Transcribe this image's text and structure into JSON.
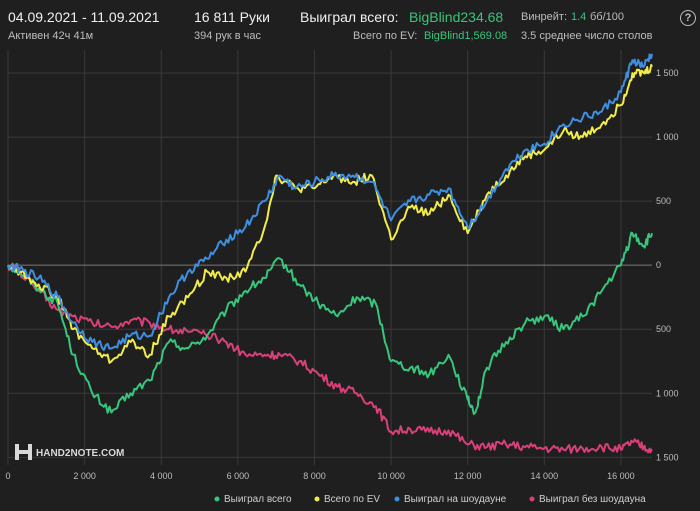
{
  "header": {
    "date_range": "04.09.2021 - 11.09.2021",
    "active": "Активен 42ч 41м",
    "hands": "16 811 Руки",
    "hands_per_hour": "394 рук в час",
    "won_total_label": "Выиграл всего:",
    "won_total_value": "BigBlind234.68",
    "ev_total_label": "Всего по EV:",
    "ev_total_value": "BigBlind1,569.08",
    "winrate_label": "Винрейт:",
    "winrate_value": "1.4",
    "winrate_unit": "бб/100",
    "avg_tables": "3.5 среднее число столов"
  },
  "brand": {
    "name": "HAND2NOTE.COM"
  },
  "colors": {
    "won_total": "#37c67b",
    "ev": "#f2ec4a",
    "showdown": "#3f8fe0",
    "non_showdown": "#d9407a",
    "grid": "#3a3a3a",
    "zero_line": "#7a7a7a",
    "accent_green": "#37c67b"
  },
  "chart_data": {
    "type": "line",
    "x_ticks": [
      0,
      2000,
      4000,
      6000,
      8000,
      10000,
      12000,
      14000,
      16000
    ],
    "x_tick_labels": [
      "0",
      "2 000",
      "4 000",
      "6 000",
      "8 000",
      "10 000",
      "12 000",
      "14 000",
      "16 000"
    ],
    "y_ticks": [
      1500,
      1000,
      500,
      0,
      -500,
      -1000,
      -1500
    ],
    "y_tick_labels": [
      "1 500",
      "1 000",
      "500",
      "0",
      "500",
      "1 000",
      "1 500"
    ],
    "xlim": [
      0,
      16811
    ],
    "ylim": [
      -1560,
      1680
    ],
    "grid": true,
    "legend_position": "bottom",
    "series": [
      {
        "name": "Выиграл всего",
        "color": "#37c67b",
        "points": [
          [
            0,
            0
          ],
          [
            300,
            -50
          ],
          [
            800,
            -180
          ],
          [
            1300,
            -300
          ],
          [
            1700,
            -700
          ],
          [
            2200,
            -1000
          ],
          [
            2700,
            -1150
          ],
          [
            3200,
            -1000
          ],
          [
            3700,
            -900
          ],
          [
            4200,
            -600
          ],
          [
            4700,
            -650
          ],
          [
            5200,
            -550
          ],
          [
            5700,
            -350
          ],
          [
            6200,
            -200
          ],
          [
            6700,
            -100
          ],
          [
            7100,
            50
          ],
          [
            7600,
            -150
          ],
          [
            8100,
            -300
          ],
          [
            8600,
            -400
          ],
          [
            9100,
            -250
          ],
          [
            9600,
            -300
          ],
          [
            10000,
            -750
          ],
          [
            10500,
            -800
          ],
          [
            11000,
            -850
          ],
          [
            11500,
            -700
          ],
          [
            12000,
            -1050
          ],
          [
            12200,
            -1150
          ],
          [
            12500,
            -800
          ],
          [
            13000,
            -600
          ],
          [
            13500,
            -450
          ],
          [
            14000,
            -400
          ],
          [
            14500,
            -500
          ],
          [
            15000,
            -400
          ],
          [
            15500,
            -200
          ],
          [
            16000,
            0
          ],
          [
            16300,
            250
          ],
          [
            16600,
            150
          ],
          [
            16811,
            250
          ]
        ]
      },
      {
        "name": "Всего по EV",
        "color": "#f2ec4a",
        "points": [
          [
            0,
            0
          ],
          [
            300,
            -50
          ],
          [
            800,
            -150
          ],
          [
            1300,
            -250
          ],
          [
            1700,
            -500
          ],
          [
            2200,
            -650
          ],
          [
            2700,
            -750
          ],
          [
            3200,
            -600
          ],
          [
            3700,
            -700
          ],
          [
            4200,
            -400
          ],
          [
            4700,
            -250
          ],
          [
            5200,
            -50
          ],
          [
            5700,
            -100
          ],
          [
            6200,
            -50
          ],
          [
            6700,
            300
          ],
          [
            7000,
            700
          ],
          [
            7500,
            600
          ],
          [
            8000,
            600
          ],
          [
            8500,
            700
          ],
          [
            9000,
            650
          ],
          [
            9500,
            700
          ],
          [
            10000,
            200
          ],
          [
            10500,
            450
          ],
          [
            11000,
            400
          ],
          [
            11500,
            550
          ],
          [
            12000,
            250
          ],
          [
            12500,
            550
          ],
          [
            13000,
            700
          ],
          [
            13500,
            850
          ],
          [
            14000,
            900
          ],
          [
            14500,
            1050
          ],
          [
            15000,
            1000
          ],
          [
            15500,
            1100
          ],
          [
            16000,
            1250
          ],
          [
            16300,
            1500
          ],
          [
            16600,
            1500
          ],
          [
            16811,
            1550
          ]
        ]
      },
      {
        "name": "Выиграл на шоудауне",
        "color": "#3f8fe0",
        "points": [
          [
            0,
            0
          ],
          [
            300,
            -30
          ],
          [
            800,
            -100
          ],
          [
            1300,
            -250
          ],
          [
            1700,
            -450
          ],
          [
            2200,
            -600
          ],
          [
            2700,
            -650
          ],
          [
            3200,
            -550
          ],
          [
            3700,
            -550
          ],
          [
            4200,
            -250
          ],
          [
            4700,
            -50
          ],
          [
            5200,
            50
          ],
          [
            5700,
            200
          ],
          [
            6200,
            300
          ],
          [
            6700,
            500
          ],
          [
            7100,
            700
          ],
          [
            7500,
            600
          ],
          [
            8000,
            650
          ],
          [
            8500,
            700
          ],
          [
            9000,
            700
          ],
          [
            9500,
            650
          ],
          [
            10000,
            350
          ],
          [
            10500,
            500
          ],
          [
            11000,
            550
          ],
          [
            11500,
            600
          ],
          [
            12000,
            300
          ],
          [
            12500,
            500
          ],
          [
            13000,
            750
          ],
          [
            13500,
            900
          ],
          [
            14000,
            950
          ],
          [
            14500,
            1100
          ],
          [
            15000,
            1150
          ],
          [
            15500,
            1200
          ],
          [
            16000,
            1350
          ],
          [
            16300,
            1600
          ],
          [
            16600,
            1550
          ],
          [
            16811,
            1650
          ]
        ]
      },
      {
        "name": "Выиграл без шоудауна",
        "color": "#d9407a",
        "points": [
          [
            0,
            0
          ],
          [
            300,
            -50
          ],
          [
            800,
            -200
          ],
          [
            1300,
            -350
          ],
          [
            1700,
            -400
          ],
          [
            2200,
            -450
          ],
          [
            2700,
            -480
          ],
          [
            3200,
            -430
          ],
          [
            3700,
            -450
          ],
          [
            4200,
            -500
          ],
          [
            4700,
            -520
          ],
          [
            5200,
            -550
          ],
          [
            5700,
            -600
          ],
          [
            6200,
            -700
          ],
          [
            6700,
            -700
          ],
          [
            7100,
            -700
          ],
          [
            7600,
            -750
          ],
          [
            8100,
            -850
          ],
          [
            8600,
            -950
          ],
          [
            9100,
            -1000
          ],
          [
            9600,
            -1100
          ],
          [
            10000,
            -1300
          ],
          [
            10500,
            -1280
          ],
          [
            11000,
            -1300
          ],
          [
            11500,
            -1290
          ],
          [
            12000,
            -1400
          ],
          [
            12500,
            -1420
          ],
          [
            13000,
            -1400
          ],
          [
            13500,
            -1420
          ],
          [
            14000,
            -1430
          ],
          [
            14500,
            -1440
          ],
          [
            15000,
            -1430
          ],
          [
            15500,
            -1420
          ],
          [
            16000,
            -1440
          ],
          [
            16300,
            -1380
          ],
          [
            16600,
            -1420
          ],
          [
            16811,
            -1450
          ]
        ]
      }
    ]
  }
}
